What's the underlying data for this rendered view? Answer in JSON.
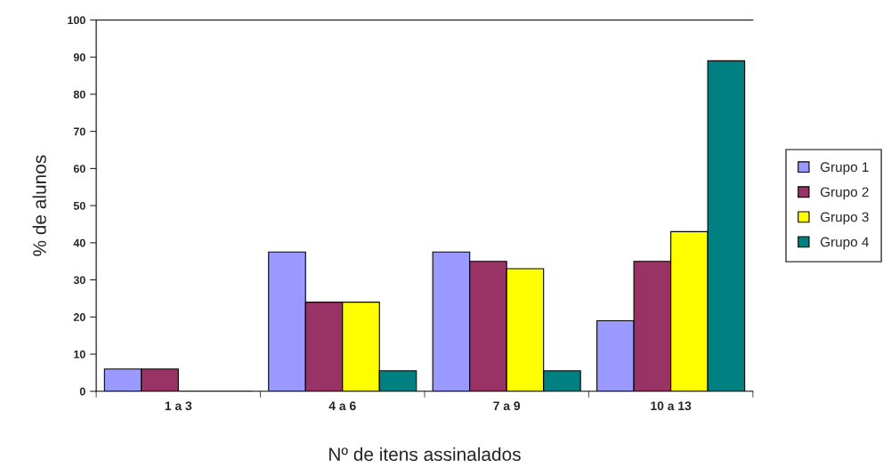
{
  "chart_data": {
    "type": "bar",
    "xlabel": "Nº de itens assinalados",
    "ylabel": "% de alunos",
    "categories": [
      "1 a 3",
      "4 a 6",
      "7 a 9",
      "10 a 13"
    ],
    "series": [
      {
        "name": "Grupo 1",
        "color": "#9999ff",
        "values": [
          6,
          37.5,
          37.5,
          19
        ]
      },
      {
        "name": "Grupo 2",
        "color": "#993366",
        "values": [
          6,
          24,
          35,
          35
        ]
      },
      {
        "name": "Grupo 3",
        "color": "#ffff00",
        "values": [
          0,
          24,
          33,
          43
        ]
      },
      {
        "name": "Grupo 4",
        "color": "#008080",
        "values": [
          0,
          5.5,
          5.5,
          89
        ]
      }
    ],
    "ylim": [
      0,
      100
    ],
    "yticks": [
      0,
      10,
      20,
      30,
      40,
      50,
      60,
      70,
      80,
      90,
      100
    ],
    "grid": false,
    "legend": "right"
  }
}
